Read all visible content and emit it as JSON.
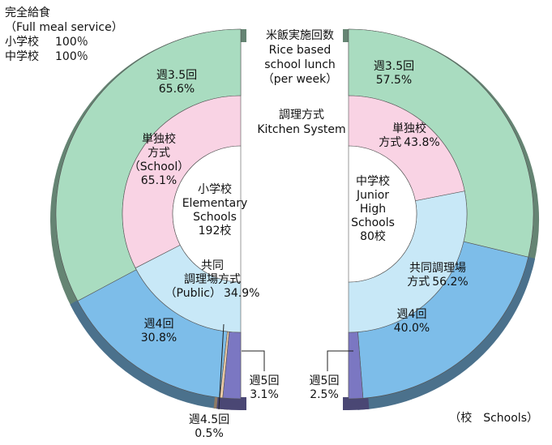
{
  "header": {
    "title": "完全給食",
    "subtitle": "（Full meal service）",
    "rows": [
      [
        "小学校",
        "100％"
      ],
      [
        "中学校",
        "100％"
      ]
    ]
  },
  "legend": {
    "outer": [
      "米飯実施回数",
      "Rice based",
      "school lunch",
      "（per week）"
    ],
    "inner": [
      "調理方式",
      "Kitchen System"
    ]
  },
  "unit_note": "（校　Schools）",
  "chart_data": [
    {
      "type": "donut",
      "title": [
        "小学校",
        "Elementary",
        "Schools"
      ],
      "total_label": "192校",
      "rings": [
        {
          "categories": [
            [
              "週3.5回"
            ],
            [
              "週4回"
            ],
            [
              "週4.5回"
            ],
            [
              "週5回"
            ]
          ],
          "values": [
            65.6,
            30.8,
            0.5,
            3.1
          ],
          "value_labels": [
            "65.6%",
            "30.8%",
            "0.5%",
            "3.1%"
          ],
          "colors": [
            "#a9dcc0",
            "#7dbde9",
            "#eccba6",
            "#7b77c2"
          ]
        },
        {
          "categories": [
            [
              "単独校",
              "方式",
              "（School）"
            ],
            [
              "共同",
              "調理場方式",
              "（Public）"
            ]
          ],
          "values": [
            65.1,
            34.9
          ],
          "value_labels": [
            "65.1%",
            "34.9%"
          ],
          "colors": [
            "#f9d3e4",
            "#c8e8f7"
          ]
        }
      ]
    },
    {
      "type": "donut",
      "title": [
        "中学校",
        "Junior",
        "High",
        "Schools"
      ],
      "total_label": "80校",
      "rings": [
        {
          "categories": [
            [
              "週3.5回"
            ],
            [
              "週4回"
            ],
            [
              "週5回"
            ]
          ],
          "values": [
            57.5,
            40.0,
            2.5
          ],
          "value_labels": [
            "57.5%",
            "40.0%",
            "2.5%"
          ],
          "colors": [
            "#a9dcc0",
            "#7dbde9",
            "#7b77c2"
          ]
        },
        {
          "categories": [
            [
              "単独校",
              "方式"
            ],
            [
              "共同調理場",
              "方式"
            ]
          ],
          "values": [
            43.8,
            56.2
          ],
          "value_labels": [
            "43.8%",
            "56.2%"
          ],
          "colors": [
            "#f9d3e4",
            "#c8e8f7"
          ]
        }
      ]
    }
  ]
}
